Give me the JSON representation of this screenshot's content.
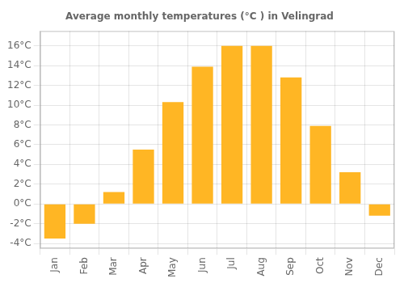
{
  "chart_data": {
    "type": "bar",
    "title": "Average monthly temperatures (°C ) in Velingrad",
    "categories": [
      "Jan",
      "Feb",
      "Mar",
      "Apr",
      "May",
      "Jun",
      "Jul",
      "Aug",
      "Sep",
      "Oct",
      "Nov",
      "Dec"
    ],
    "values": [
      -3.5,
      -2.0,
      1.2,
      5.5,
      10.3,
      13.9,
      16.0,
      16.0,
      12.8,
      7.9,
      3.2,
      -1.2
    ],
    "color": "#FFB624",
    "ylim": [
      -4.5,
      17.5
    ],
    "yticks": [
      {
        "value": -4,
        "label": "-4°C"
      },
      {
        "value": -2,
        "label": "-2°C"
      },
      {
        "value": 0,
        "label": "0°C"
      },
      {
        "value": 2,
        "label": "2°C"
      },
      {
        "value": 4,
        "label": "4°C"
      },
      {
        "value": 6,
        "label": "6°C"
      },
      {
        "value": 8,
        "label": "8°C"
      },
      {
        "value": 10,
        "label": "10°C"
      },
      {
        "value": 12,
        "label": "12°C"
      },
      {
        "value": 14,
        "label": "14°C"
      },
      {
        "value": 16,
        "label": "16°C"
      }
    ],
    "grid": true
  }
}
